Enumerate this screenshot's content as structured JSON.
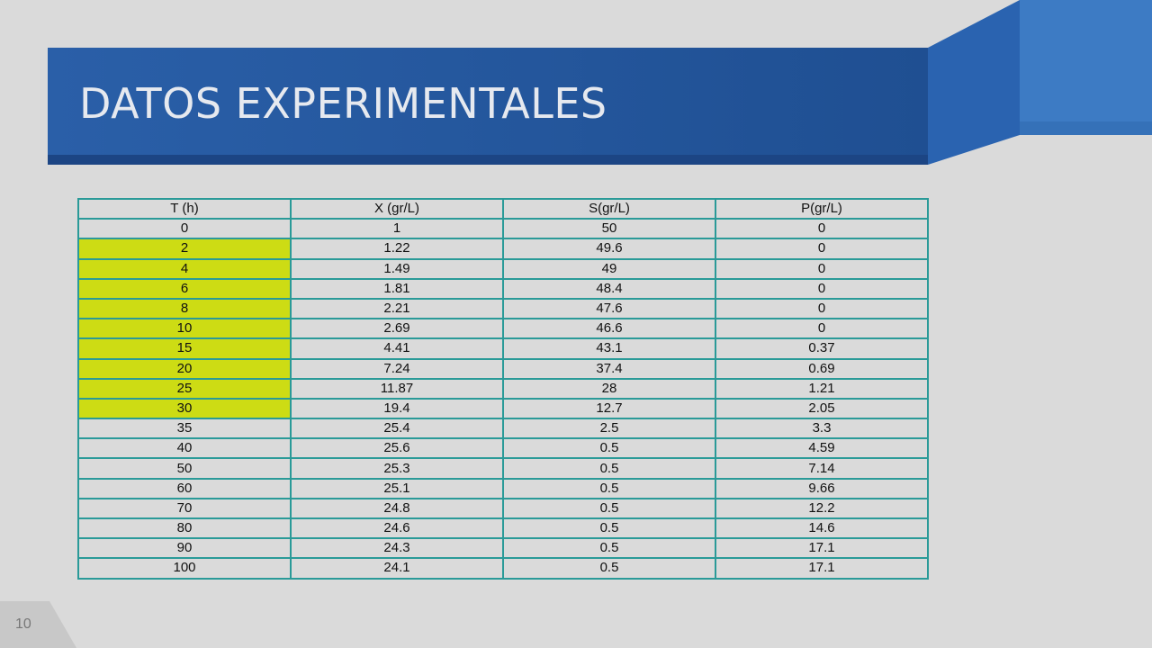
{
  "title": "DATOS EXPERIMENTALES",
  "slide_number": "10",
  "table": {
    "headers": [
      "T (h)",
      "X (gr/L)",
      "S(gr/L)",
      "P(gr/L)"
    ],
    "rows": [
      [
        "0",
        "1",
        "50",
        "0"
      ],
      [
        "2",
        "1.22",
        "49.6",
        "0"
      ],
      [
        "4",
        "1.49",
        "49",
        "0"
      ],
      [
        "6",
        "1.81",
        "48.4",
        "0"
      ],
      [
        "8",
        "2.21",
        "47.6",
        "0"
      ],
      [
        "10",
        "2.69",
        "46.6",
        "0"
      ],
      [
        "15",
        "4.41",
        "43.1",
        "0.37"
      ],
      [
        "20",
        "7.24",
        "37.4",
        "0.69"
      ],
      [
        "25",
        "11.87",
        "28",
        "1.21"
      ],
      [
        "30",
        "19.4",
        "12.7",
        "2.05"
      ],
      [
        "35",
        "25.4",
        "2.5",
        "3.3"
      ],
      [
        "40",
        "25.6",
        "0.5",
        "4.59"
      ],
      [
        "50",
        "25.3",
        "0.5",
        "7.14"
      ],
      [
        "60",
        "25.1",
        "0.5",
        "9.66"
      ],
      [
        "70",
        "24.8",
        "0.5",
        "12.2"
      ],
      [
        "80",
        "24.6",
        "0.5",
        "14.6"
      ],
      [
        "90",
        "24.3",
        "0.5",
        "17.1"
      ],
      [
        "100",
        "24.1",
        "0.5",
        "17.1"
      ]
    ],
    "highlight_color": "#cddc14",
    "highlighted_rows": [
      1,
      2,
      3,
      4,
      5,
      6,
      7,
      8,
      9
    ]
  }
}
